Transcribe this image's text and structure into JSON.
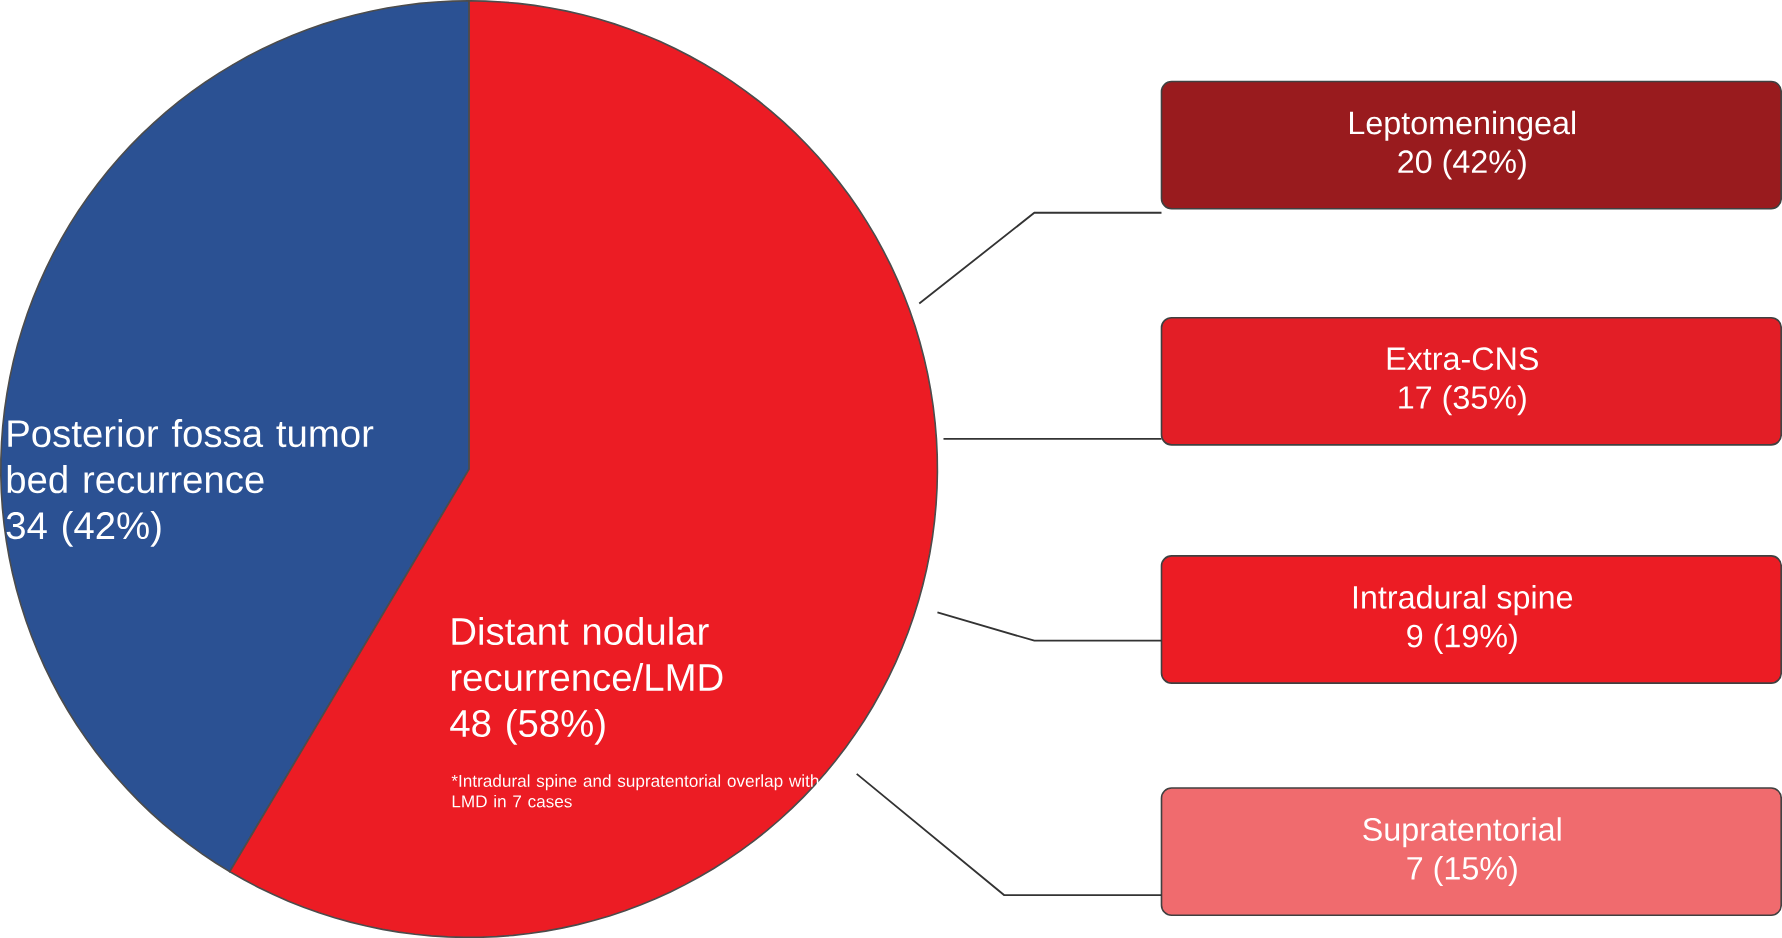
{
  "chart_data": [
    {
      "type": "pie",
      "categories": [
        "Posterior fossa tumor bed recurrence",
        "Distant nodular recurrence/LMD"
      ],
      "values": [
        34,
        48
      ],
      "value_labels": [
        "34 (42%)",
        "48 (58%)"
      ],
      "colors": [
        "#2b5193",
        "#ec1c24"
      ],
      "annotations": [
        "*Intradural spine and supratentorial overlap with LMD in 7 cases"
      ]
    },
    {
      "type": "other",
      "categories": [
        "Leptomeningeal",
        "Extra-CNS",
        "Intradural spine",
        "Supratentorial"
      ],
      "values": [
        20,
        17,
        9,
        7
      ],
      "value_labels": [
        "20 (42%)",
        "17 (35%)",
        "9 (19%)",
        "7 (15%)"
      ],
      "colors": [
        "#991b1e",
        "#e31e26",
        "#ec1c24",
        "#f06b6e"
      ]
    }
  ]
}
